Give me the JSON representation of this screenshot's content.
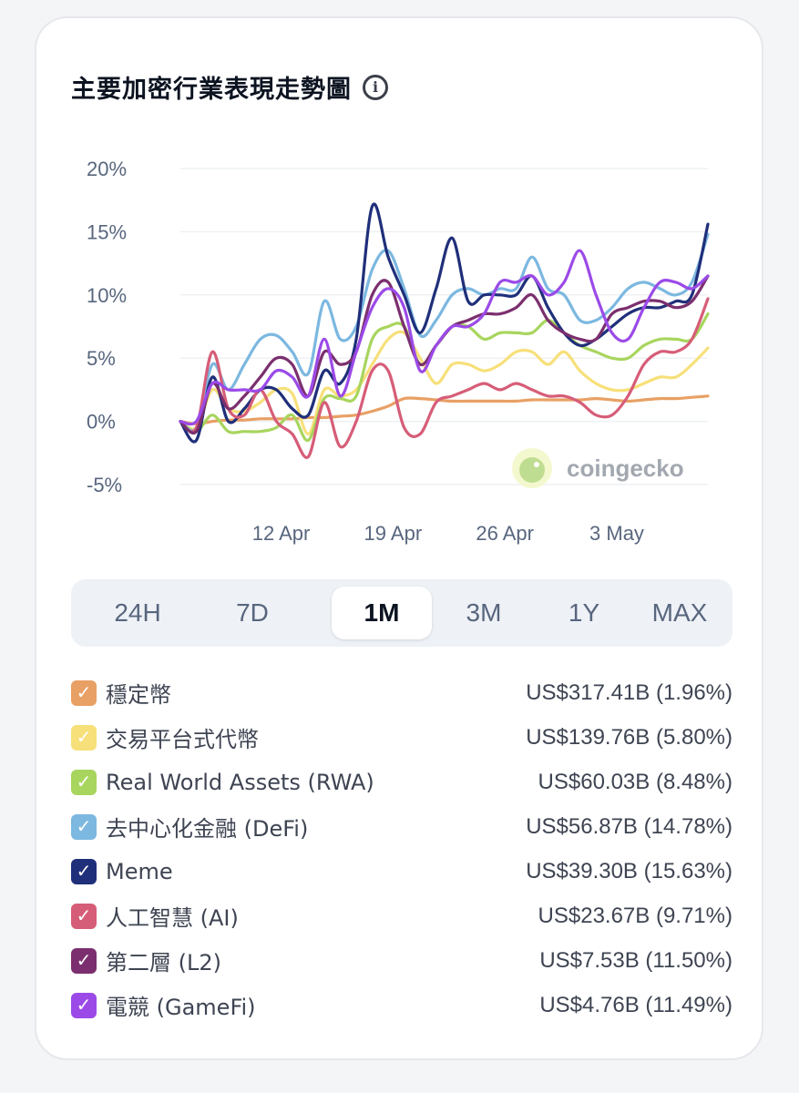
{
  "header": {
    "title": "主要加密行業表現走勢圖"
  },
  "tabs": [
    {
      "label": "24H",
      "active": false
    },
    {
      "label": "7D",
      "active": false
    },
    {
      "label": "1M",
      "active": true
    },
    {
      "label": "3M",
      "active": false
    },
    {
      "label": "1Y",
      "active": false
    },
    {
      "label": "MAX",
      "active": false
    }
  ],
  "watermark": "coingecko",
  "legend": [
    {
      "name": "穩定幣",
      "value": "US$317.41B (1.96%)",
      "color": "#e8a064"
    },
    {
      "name": "交易平台式代幣",
      "value": "US$139.76B (5.80%)",
      "color": "#f7e07a"
    },
    {
      "name": "Real World Assets (RWA)",
      "value": "US$60.03B (8.48%)",
      "color": "#a8d55e"
    },
    {
      "name": "去中心化金融 (DeFi)",
      "value": "US$56.87B (14.78%)",
      "color": "#7cb8e0"
    },
    {
      "name": "Meme",
      "value": "US$39.30B (15.63%)",
      "color": "#1f2f7a"
    },
    {
      "name": "人工智慧 (AI)",
      "value": "US$23.67B (9.71%)",
      "color": "#d65d78"
    },
    {
      "name": "第二層 (L2)",
      "value": "US$7.53B (11.50%)",
      "color": "#7b2f6e"
    },
    {
      "name": "電競 (GameFi)",
      "value": "US$4.76B (11.49%)",
      "color": "#9b4ae8"
    }
  ],
  "chart_data": {
    "type": "line",
    "ylim": [
      -5,
      20
    ],
    "yticks": [
      20,
      15,
      10,
      5,
      0,
      -5
    ],
    "ytick_labels": [
      "20%",
      "15%",
      "10%",
      "5%",
      "0%",
      "-5%"
    ],
    "xlim": [
      0,
      33
    ],
    "xticks": [
      {
        "label": "12 Apr",
        "x": 6.3
      },
      {
        "label": "19 Apr",
        "x": 13.3
      },
      {
        "label": "26 Apr",
        "x": 20.3
      },
      {
        "label": "3 May",
        "x": 27.3
      }
    ],
    "grid": true,
    "series": [
      {
        "name": "穩定幣",
        "color": "#e8a064",
        "values": [
          0,
          -0.2,
          0,
          0.1,
          0.1,
          0.2,
          0.2,
          0.2,
          0.3,
          0.3,
          0.4,
          0.5,
          0.8,
          1.2,
          1.8,
          1.8,
          1.7,
          1.6,
          1.6,
          1.6,
          1.6,
          1.6,
          1.7,
          1.7,
          1.7,
          1.7,
          1.8,
          1.7,
          1.6,
          1.7,
          1.8,
          1.8,
          1.9,
          2.0
        ]
      },
      {
        "name": "交易平台式代幣",
        "color": "#f7e07a",
        "values": [
          0,
          -0.5,
          2.5,
          1.0,
          0.8,
          1.5,
          2.5,
          2.2,
          -1.0,
          2.5,
          2.0,
          2.5,
          4.5,
          6.5,
          7.0,
          5.0,
          3.0,
          4.5,
          4.5,
          4.0,
          4.5,
          5.5,
          5.5,
          4.5,
          5.5,
          4.0,
          3.0,
          2.5,
          2.5,
          3.0,
          3.5,
          3.5,
          4.5,
          5.8
        ]
      },
      {
        "name": "Real World Assets (RWA)",
        "color": "#a8d55e",
        "values": [
          0,
          -0.8,
          0.5,
          -0.8,
          -0.8,
          -0.8,
          -0.5,
          0.5,
          -1.5,
          1.8,
          1.8,
          2.0,
          6.5,
          7.5,
          7.5,
          4.5,
          6.0,
          7.5,
          7.5,
          6.5,
          7.0,
          7.0,
          7.0,
          8.0,
          7.0,
          6.0,
          5.5,
          5.0,
          5.0,
          6.0,
          6.5,
          6.5,
          6.5,
          8.5
        ]
      },
      {
        "name": "去中心化金融 (DeFi)",
        "color": "#7cb8e0",
        "values": [
          0,
          -0.5,
          4.5,
          2.5,
          4.5,
          6.5,
          6.8,
          5.5,
          3.8,
          9.5,
          6.5,
          7.5,
          12.0,
          13.5,
          10.5,
          6.8,
          8.0,
          10.0,
          10.5,
          10.0,
          10.5,
          10.5,
          13.0,
          10.5,
          10.0,
          8.0,
          8.0,
          9.0,
          10.5,
          11.0,
          10.5,
          10.0,
          11.0,
          14.8
        ]
      },
      {
        "name": "Meme",
        "color": "#1f2f7a",
        "values": [
          0,
          -1.5,
          3.5,
          0,
          1.0,
          2.5,
          2.5,
          1.0,
          0.5,
          4.0,
          3.0,
          6.5,
          17.0,
          13.0,
          10.0,
          7.0,
          10.5,
          14.5,
          9.5,
          10.0,
          10.0,
          10.0,
          11.5,
          9.0,
          7.0,
          6.0,
          6.5,
          7.5,
          8.5,
          9.0,
          9.0,
          9.5,
          10.0,
          15.6
        ]
      },
      {
        "name": "人工智慧 (AI)",
        "color": "#d65d78",
        "values": [
          0,
          -0.5,
          5.5,
          1.0,
          0.5,
          2.5,
          0,
          -1.0,
          -2.8,
          1.5,
          -2.0,
          0,
          4.0,
          4.0,
          -0.5,
          -1.0,
          1.5,
          2.0,
          2.5,
          3.0,
          2.5,
          3.0,
          2.5,
          2.0,
          2.0,
          1.5,
          0.5,
          0.5,
          2.0,
          4.5,
          5.5,
          5.5,
          6.5,
          9.7
        ]
      },
      {
        "name": "第二層 (L2)",
        "color": "#7b2f6e",
        "values": [
          0,
          -0.8,
          3.0,
          1.0,
          2.0,
          3.5,
          5.0,
          4.5,
          2.0,
          5.5,
          4.5,
          5.5,
          10.0,
          11.0,
          7.5,
          4.5,
          6.0,
          7.5,
          8.0,
          8.5,
          8.5,
          9.0,
          10.0,
          8.0,
          7.0,
          6.5,
          6.5,
          8.5,
          9.0,
          9.5,
          9.5,
          9.0,
          9.5,
          11.5
        ]
      },
      {
        "name": "電競 (GameFi)",
        "color": "#9b4ae8",
        "values": [
          0,
          0,
          3.0,
          2.5,
          2.5,
          2.5,
          4.0,
          3.5,
          2.0,
          6.5,
          2.0,
          5.5,
          9.0,
          10.5,
          9.0,
          4.0,
          6.0,
          7.5,
          7.5,
          8.5,
          11.0,
          11.0,
          11.5,
          10.0,
          11.0,
          13.5,
          10.0,
          7.0,
          6.5,
          9.0,
          11.0,
          11.0,
          10.5,
          11.5
        ]
      }
    ]
  }
}
